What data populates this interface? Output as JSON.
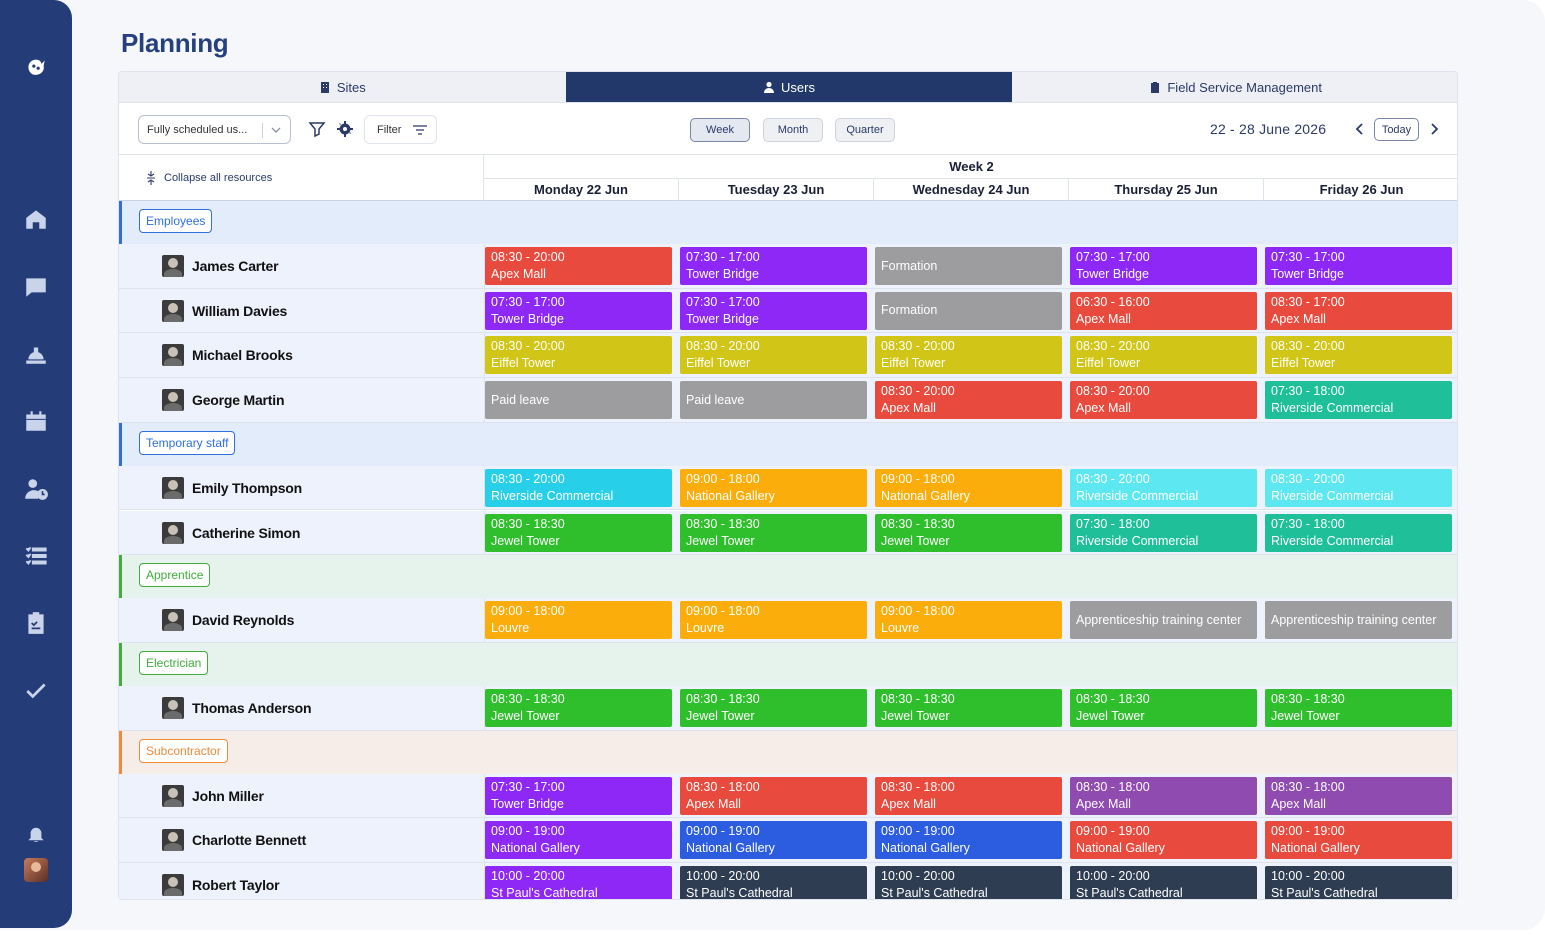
{
  "page_title": "Planning",
  "tabs": [
    {
      "label": "Sites",
      "icon": "building-icon",
      "active": false
    },
    {
      "label": "Users",
      "icon": "user-icon",
      "active": true
    },
    {
      "label": "Field Service Management",
      "icon": "clipboard-icon",
      "active": false
    }
  ],
  "toolbar": {
    "select_value": "Fully scheduled us...",
    "filter_label": "Filter",
    "views": [
      "Week",
      "Month",
      "Quarter"
    ],
    "active_view": "Week",
    "date_range": "22 - 28 June 2026",
    "today_label": "Today"
  },
  "grid": {
    "collapse_label": "Collapse all resources",
    "week_label": "Week 2",
    "days": [
      "Monday 22 Jun",
      "Tuesday 23 Jun",
      "Wednesday 24 Jun",
      "Thursday 25 Jun",
      "Friday 26 Jun"
    ]
  },
  "colors": {
    "red": "#e84a3d",
    "purple": "#8e28f6",
    "gray": "#9d9d9f",
    "olive": "#d1c617",
    "teal": "#1fbf9a",
    "cyan": "#27cfe8",
    "orange": "#fbae0b",
    "cyan_light": "#5de7f0",
    "green": "#2fbf2c",
    "violet": "#8f4bb0",
    "blue": "#2c5ce0",
    "navy": "#2e3d52"
  },
  "groups": [
    {
      "label": "Employees",
      "color": "#2f6fdf",
      "bg": "#e3ecfb",
      "resources": [
        {
          "name": "James Carter",
          "events": [
            {
              "time": "08:30 - 20:00",
              "site": "Apex Mall",
              "color": "red"
            },
            {
              "time": "07:30 - 17:00",
              "site": "Tower Bridge",
              "color": "purple"
            },
            {
              "time": "",
              "site": "Formation",
              "color": "gray"
            },
            {
              "time": "07:30 - 17:00",
              "site": "Tower Bridge",
              "color": "purple"
            },
            {
              "time": "07:30 - 17:00",
              "site": "Tower Bridge",
              "color": "purple"
            }
          ]
        },
        {
          "name": "William Davies",
          "events": [
            {
              "time": "07:30 - 17:00",
              "site": "Tower Bridge",
              "color": "purple"
            },
            {
              "time": "07:30 - 17:00",
              "site": "Tower Bridge",
              "color": "purple"
            },
            {
              "time": "",
              "site": "Formation",
              "color": "gray"
            },
            {
              "time": "06:30 - 16:00",
              "site": "Apex Mall",
              "color": "red"
            },
            {
              "time": "08:30 - 17:00",
              "site": "Apex Mall",
              "color": "red"
            }
          ]
        },
        {
          "name": "Michael Brooks",
          "events": [
            {
              "time": "08:30 - 20:00",
              "site": "Eiffel Tower",
              "color": "olive"
            },
            {
              "time": "08:30 - 20:00",
              "site": "Eiffel Tower",
              "color": "olive"
            },
            {
              "time": "08:30 - 20:00",
              "site": "Eiffel Tower",
              "color": "olive"
            },
            {
              "time": "08:30 - 20:00",
              "site": "Eiffel Tower",
              "color": "olive"
            },
            {
              "time": "08:30 - 20:00",
              "site": "Eiffel Tower",
              "color": "olive"
            }
          ]
        },
        {
          "name": "George Martin",
          "events": [
            {
              "time": "",
              "site": "Paid leave",
              "color": "gray"
            },
            {
              "time": "",
              "site": "Paid leave",
              "color": "gray"
            },
            {
              "time": "08:30 - 20:00",
              "site": "Apex Mall",
              "color": "red"
            },
            {
              "time": "08:30 - 20:00",
              "site": "Apex Mall",
              "color": "red"
            },
            {
              "time": "07:30 - 18:00",
              "site": "Riverside Commercial",
              "color": "teal"
            }
          ]
        }
      ]
    },
    {
      "label": "Temporary staff",
      "color": "#2f6fdf",
      "bg": "#e3ecfb",
      "resources": [
        {
          "name": "Emily Thompson",
          "events": [
            {
              "time": "08:30 - 20:00",
              "site": "Riverside Commercial",
              "color": "cyan"
            },
            {
              "time": "09:00 - 18:00",
              "site": "National Gallery",
              "color": "orange"
            },
            {
              "time": "09:00 - 18:00",
              "site": "National Gallery",
              "color": "orange"
            },
            {
              "time": "08:30 - 20:00",
              "site": "Riverside Commercial",
              "color": "cyan_light"
            },
            {
              "time": "08:30 - 20:00",
              "site": "Riverside Commercial",
              "color": "cyan_light"
            }
          ]
        },
        {
          "name": "Catherine Simon",
          "events": [
            {
              "time": "08:30 - 18:30",
              "site": "Jewel Tower",
              "color": "green"
            },
            {
              "time": "08:30 - 18:30",
              "site": "Jewel Tower",
              "color": "green"
            },
            {
              "time": "08:30 - 18:30",
              "site": "Jewel Tower",
              "color": "green"
            },
            {
              "time": "07:30 - 18:00",
              "site": "Riverside Commercial",
              "color": "teal"
            },
            {
              "time": "07:30 - 18:00",
              "site": "Riverside Commercial",
              "color": "teal"
            }
          ]
        }
      ]
    },
    {
      "label": "Apprentice",
      "color": "#3fae3a",
      "bg": "#e6f3ec",
      "resources": [
        {
          "name": "David Reynolds",
          "events": [
            {
              "time": "09:00 - 18:00",
              "site": "Louvre",
              "color": "orange"
            },
            {
              "time": "09:00 - 18:00",
              "site": "Louvre",
              "color": "orange"
            },
            {
              "time": "09:00 - 18:00",
              "site": "Louvre",
              "color": "orange"
            },
            {
              "time": "",
              "site": "Apprenticeship training center",
              "color": "gray"
            },
            {
              "time": "",
              "site": "Apprenticeship training center",
              "color": "gray"
            }
          ]
        }
      ]
    },
    {
      "label": "Electrician",
      "color": "#3fae3a",
      "bg": "#e6f3ec",
      "resources": [
        {
          "name": "Thomas Anderson",
          "events": [
            {
              "time": "08:30 - 18:30",
              "site": "Jewel Tower",
              "color": "green"
            },
            {
              "time": "08:30 - 18:30",
              "site": "Jewel Tower",
              "color": "green"
            },
            {
              "time": "08:30 - 18:30",
              "site": "Jewel Tower",
              "color": "green"
            },
            {
              "time": "08:30 - 18:30",
              "site": "Jewel Tower",
              "color": "green"
            },
            {
              "time": "08:30 - 18:30",
              "site": "Jewel Tower",
              "color": "green"
            }
          ]
        }
      ]
    },
    {
      "label": "Subcontractor",
      "color": "#ef8a3a",
      "bg": "#f6ece8",
      "resources": [
        {
          "name": "John Miller",
          "events": [
            {
              "time": "07:30 - 17:00",
              "site": "Tower Bridge",
              "color": "purple"
            },
            {
              "time": "08:30 - 18:00",
              "site": "Apex Mall",
              "color": "red"
            },
            {
              "time": "08:30 - 18:00",
              "site": "Apex Mall",
              "color": "red"
            },
            {
              "time": "08:30 - 18:00",
              "site": "Apex Mall",
              "color": "violet"
            },
            {
              "time": "08:30 - 18:00",
              "site": "Apex Mall",
              "color": "violet"
            }
          ]
        },
        {
          "name": "Charlotte Bennett",
          "events": [
            {
              "time": "09:00 - 19:00",
              "site": "National Gallery",
              "color": "purple"
            },
            {
              "time": "09:00 - 19:00",
              "site": "National Gallery",
              "color": "blue"
            },
            {
              "time": "09:00 - 19:00",
              "site": "National Gallery",
              "color": "blue"
            },
            {
              "time": "09:00 - 19:00",
              "site": "National Gallery",
              "color": "red"
            },
            {
              "time": "09:00 - 19:00",
              "site": "National Gallery",
              "color": "red"
            }
          ]
        },
        {
          "name": "Robert Taylor",
          "events": [
            {
              "time": "10:00 - 20:00",
              "site": "St Paul's Cathedral",
              "color": "purple"
            },
            {
              "time": "10:00 - 20:00",
              "site": "St Paul's Cathedral",
              "color": "navy"
            },
            {
              "time": "10:00 - 20:00",
              "site": "St Paul's Cathedral",
              "color": "navy"
            },
            {
              "time": "10:00 - 20:00",
              "site": "St Paul's Cathedral",
              "color": "navy"
            },
            {
              "time": "10:00 - 20:00",
              "site": "St Paul's Cathedral",
              "color": "navy"
            }
          ]
        }
      ]
    }
  ],
  "sidebar": {
    "icons": [
      "logo-icon",
      "home-icon",
      "chat-icon",
      "hardhat-icon",
      "calendar-icon",
      "user-clock-icon",
      "task-list-icon",
      "clipboard-check-icon",
      "check-icon",
      "bell-icon"
    ]
  }
}
